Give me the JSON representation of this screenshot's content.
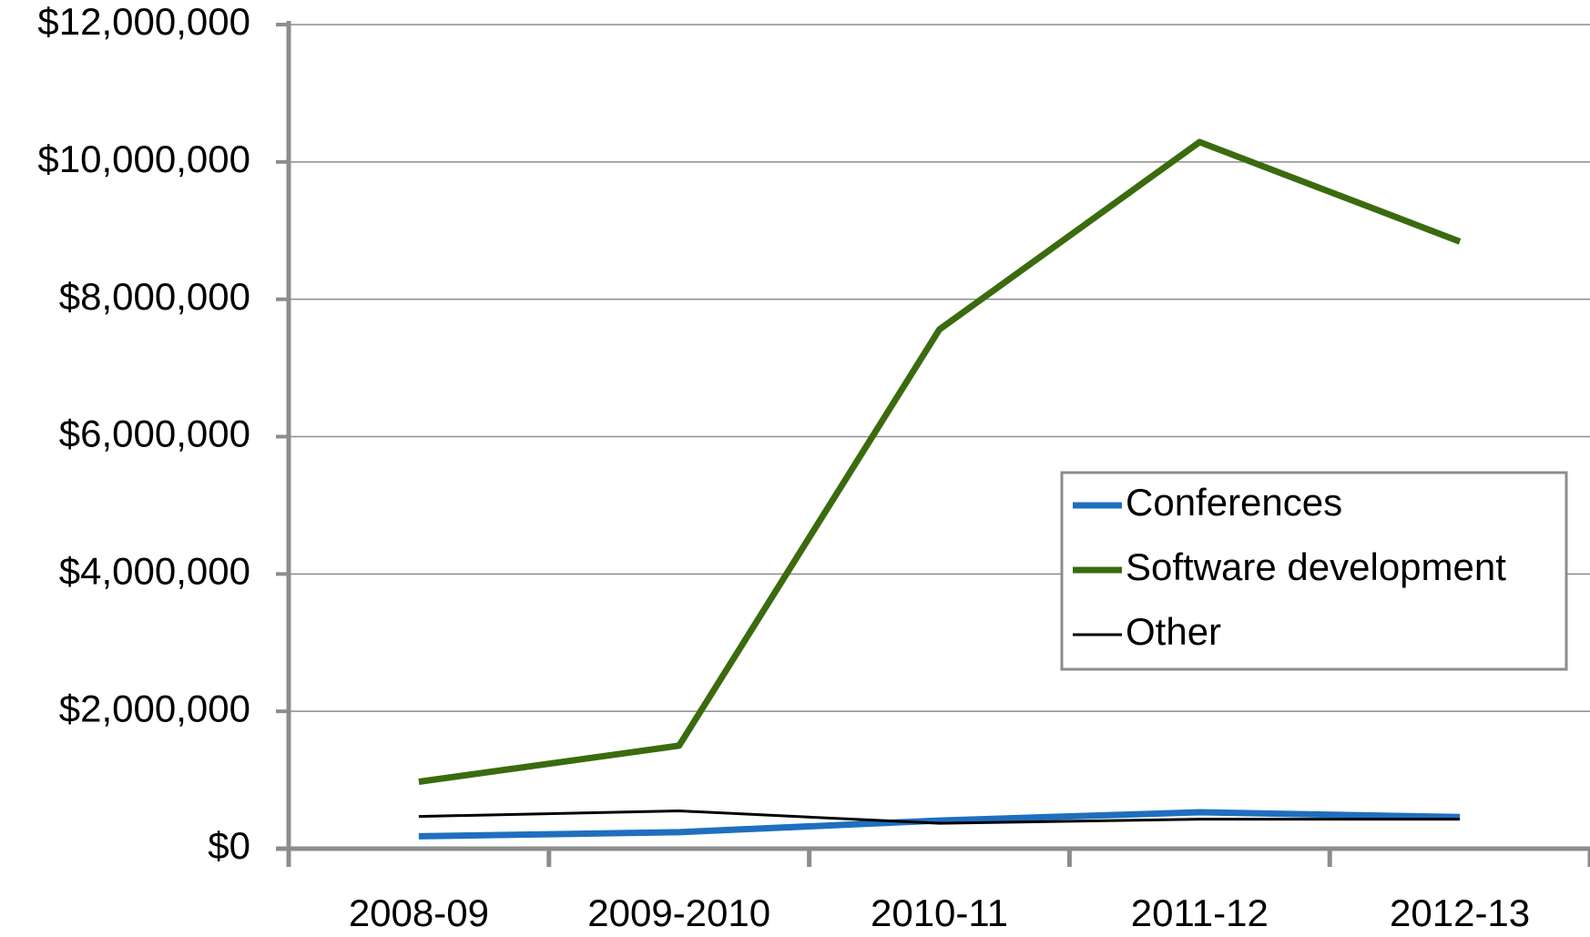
{
  "chart_data": {
    "type": "line",
    "categories": [
      "2008-09",
      "2009-2010",
      "2010-11",
      "2011-12",
      "2012-13"
    ],
    "series": [
      {
        "name": "Conferences",
        "color": "#1f6fbf",
        "values": [
          180000,
          240000,
          410000,
          530000,
          460000
        ]
      },
      {
        "name": "Software development",
        "color": "#3a6b0e",
        "values": [
          975000,
          1500000,
          7560000,
          10290000,
          8840000
        ]
      },
      {
        "name": "Other",
        "color": "#000000",
        "values": [
          470000,
          550000,
          370000,
          430000,
          430000
        ]
      }
    ],
    "ylim": [
      0,
      12000000
    ],
    "yticks": [
      {
        "value": 0,
        "label": "$0"
      },
      {
        "value": 2000000,
        "label": "$2,000,000"
      },
      {
        "value": 4000000,
        "label": "$4,000,000"
      },
      {
        "value": 6000000,
        "label": "$6,000,000"
      },
      {
        "value": 8000000,
        "label": "$8,000,000"
      },
      {
        "value": 10000000,
        "label": "$10,000,000"
      },
      {
        "value": 12000000,
        "label": "$12,000,000"
      }
    ],
    "grid": true,
    "legend": "right"
  }
}
